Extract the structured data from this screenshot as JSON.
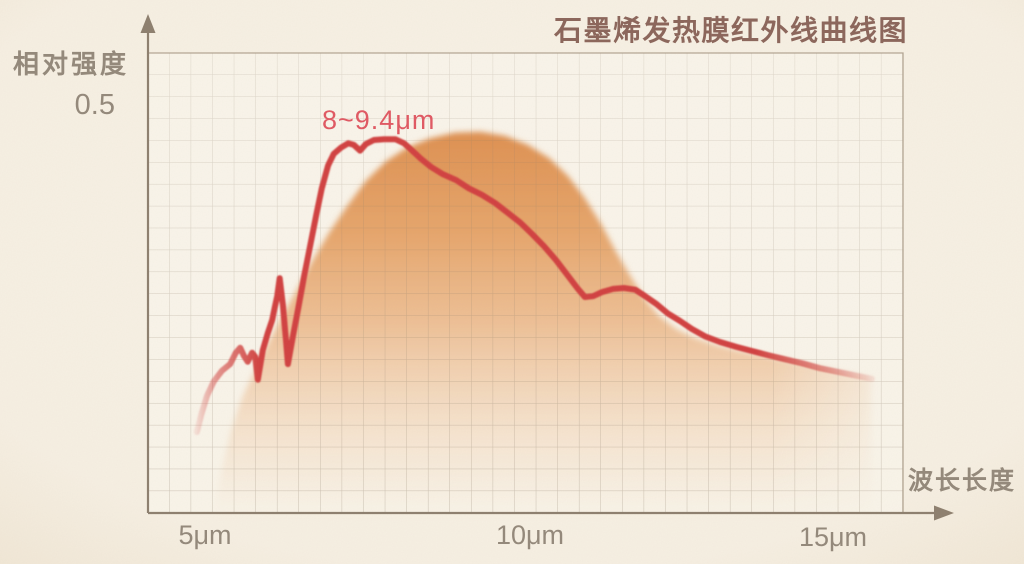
{
  "title": "石墨烯发热膜红外线曲线图",
  "axes": {
    "y_label": "相对强度",
    "y_tick": "0.5",
    "x_label": "波长长度",
    "x_tick_5": "5μm",
    "x_tick_10": "10μm",
    "x_tick_15": "15μm"
  },
  "annotation": {
    "peak_range_label": "8~9.4μm"
  },
  "colors": {
    "background": "#f6efe2",
    "background_edge": "#efe5d2",
    "plot_background": "#fbf6ed",
    "grid_line": "#8a7b68",
    "axis_line": "#8d7f6e",
    "boundary_line": "#a2937f",
    "title_text": "#8c675c",
    "label_text": "#94897b",
    "curve_red": "#d1413f",
    "annotation_red": "#df5a64",
    "area_top": "#dd8c4a",
    "area_mid": "#ecb98b",
    "area_soft": "#f4ddc4"
  },
  "chart_data": {
    "type": "area+line",
    "title": "石墨烯发热膜红外线曲线图",
    "xlabel": "波长长度",
    "ylabel": "相对强度",
    "x_unit": "μm",
    "x_ticks_um": [
      5,
      10,
      15
    ],
    "y_tick_value": 0.5,
    "x_range_um": [
      4.3,
      16.6
    ],
    "y_range": [
      0,
      0.58
    ],
    "grid": "on",
    "legend": "none",
    "annotation": "8~9.4μm",
    "red_curve_points": [
      [
        4.87,
        0.099
      ],
      [
        4.94,
        0.12
      ],
      [
        5.03,
        0.143
      ],
      [
        5.14,
        0.161
      ],
      [
        5.27,
        0.174
      ],
      [
        5.4,
        0.182
      ],
      [
        5.49,
        0.196
      ],
      [
        5.56,
        0.202
      ],
      [
        5.62,
        0.192
      ],
      [
        5.68,
        0.185
      ],
      [
        5.75,
        0.196
      ],
      [
        5.8,
        0.191
      ],
      [
        5.84,
        0.163
      ],
      [
        5.92,
        0.199
      ],
      [
        6.0,
        0.22
      ],
      [
        6.07,
        0.236
      ],
      [
        6.11,
        0.251
      ],
      [
        6.15,
        0.265
      ],
      [
        6.19,
        0.287
      ],
      [
        6.24,
        0.254
      ],
      [
        6.29,
        0.211
      ],
      [
        6.32,
        0.182
      ],
      [
        6.4,
        0.216
      ],
      [
        6.48,
        0.248
      ],
      [
        6.58,
        0.29
      ],
      [
        6.67,
        0.325
      ],
      [
        6.77,
        0.364
      ],
      [
        6.86,
        0.397
      ],
      [
        6.96,
        0.425
      ],
      [
        7.05,
        0.439
      ],
      [
        7.17,
        0.447
      ],
      [
        7.28,
        0.452
      ],
      [
        7.37,
        0.45
      ],
      [
        7.47,
        0.443
      ],
      [
        7.56,
        0.451
      ],
      [
        7.69,
        0.456
      ],
      [
        7.85,
        0.457
      ],
      [
        8.03,
        0.457
      ],
      [
        8.17,
        0.452
      ],
      [
        8.3,
        0.443
      ],
      [
        8.44,
        0.433
      ],
      [
        8.6,
        0.423
      ],
      [
        8.79,
        0.414
      ],
      [
        9.0,
        0.407
      ],
      [
        9.2,
        0.397
      ],
      [
        9.41,
        0.389
      ],
      [
        9.62,
        0.379
      ],
      [
        9.82,
        0.367
      ],
      [
        10.02,
        0.355
      ],
      [
        10.21,
        0.341
      ],
      [
        10.4,
        0.326
      ],
      [
        10.59,
        0.309
      ],
      [
        10.78,
        0.29
      ],
      [
        10.94,
        0.274
      ],
      [
        11.05,
        0.264
      ],
      [
        11.18,
        0.265
      ],
      [
        11.32,
        0.27
      ],
      [
        11.5,
        0.274
      ],
      [
        11.67,
        0.275
      ],
      [
        11.85,
        0.273
      ],
      [
        12.01,
        0.265
      ],
      [
        12.18,
        0.256
      ],
      [
        12.37,
        0.244
      ],
      [
        12.56,
        0.235
      ],
      [
        12.75,
        0.225
      ],
      [
        12.96,
        0.216
      ],
      [
        13.2,
        0.209
      ],
      [
        13.46,
        0.203
      ],
      [
        13.71,
        0.198
      ],
      [
        13.96,
        0.193
      ],
      [
        14.23,
        0.188
      ],
      [
        14.51,
        0.183
      ],
      [
        14.79,
        0.177
      ],
      [
        15.11,
        0.172
      ],
      [
        15.43,
        0.167
      ],
      [
        15.62,
        0.164
      ]
    ],
    "orange_area_points": [
      [
        5.16,
        0.0
      ],
      [
        5.27,
        0.053
      ],
      [
        5.41,
        0.099
      ],
      [
        5.59,
        0.141
      ],
      [
        5.78,
        0.172
      ],
      [
        5.99,
        0.205
      ],
      [
        6.21,
        0.238
      ],
      [
        6.45,
        0.271
      ],
      [
        6.7,
        0.307
      ],
      [
        6.97,
        0.342
      ],
      [
        7.26,
        0.375
      ],
      [
        7.56,
        0.406
      ],
      [
        7.88,
        0.43
      ],
      [
        8.22,
        0.447
      ],
      [
        8.58,
        0.458
      ],
      [
        8.98,
        0.465
      ],
      [
        9.38,
        0.466
      ],
      [
        9.78,
        0.461
      ],
      [
        10.14,
        0.45
      ],
      [
        10.48,
        0.434
      ],
      [
        10.78,
        0.412
      ],
      [
        11.05,
        0.385
      ],
      [
        11.31,
        0.353
      ],
      [
        11.54,
        0.32
      ],
      [
        11.77,
        0.29
      ],
      [
        11.99,
        0.263
      ],
      [
        12.23,
        0.241
      ],
      [
        12.5,
        0.225
      ],
      [
        12.8,
        0.214
      ],
      [
        13.14,
        0.205
      ],
      [
        13.52,
        0.198
      ],
      [
        13.92,
        0.192
      ],
      [
        14.31,
        0.186
      ],
      [
        14.71,
        0.18
      ],
      [
        15.19,
        0.172
      ],
      [
        15.62,
        0.166
      ]
    ]
  }
}
